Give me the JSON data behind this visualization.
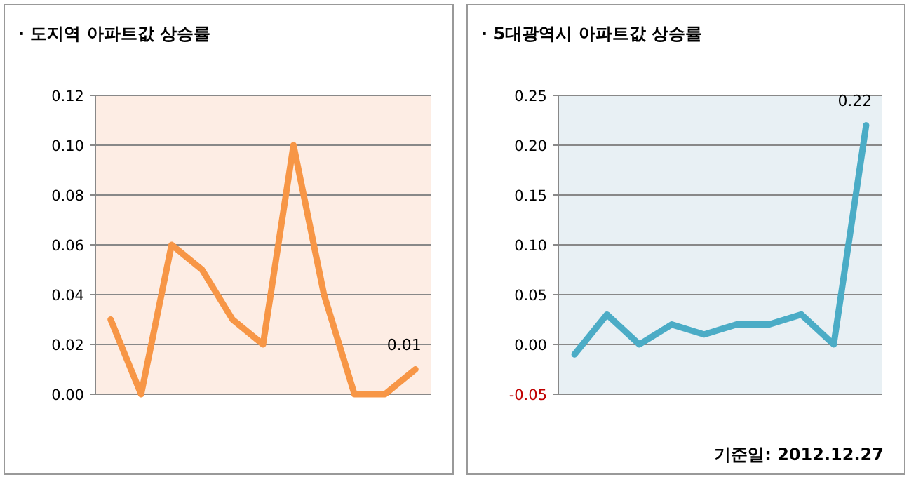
{
  "chart_data": [
    {
      "type": "line",
      "title": "· 도지역 아파트값 상승률",
      "categories": [
        null,
        null,
        null,
        null,
        null,
        null,
        null,
        null,
        null,
        null,
        null
      ],
      "series": [
        {
          "color": "#f79646",
          "values": [
            0.03,
            0,
            0.06,
            0.05,
            0.03,
            0.02,
            0.1,
            0.04,
            0,
            0,
            0.01
          ],
          "value_labels": [
            null,
            null,
            null,
            null,
            null,
            null,
            null,
            null,
            null,
            null,
            "0.01"
          ]
        }
      ],
      "ylim": [
        0,
        0.12
      ],
      "yticks": [
        {
          "value": 0,
          "label": "0.00"
        },
        {
          "value": 0.02,
          "label": "0.02"
        },
        {
          "value": 0.04,
          "label": "0.04"
        },
        {
          "value": 0.06,
          "label": "0.06"
        },
        {
          "value": 0.08,
          "label": "0.08"
        },
        {
          "value": 0.1,
          "label": "0.10"
        },
        {
          "value": 0.12,
          "label": "0.12"
        }
      ],
      "grid": "y",
      "marker": "none",
      "line_style": "solid",
      "tick_labels": "y"
    },
    {
      "type": "line",
      "title": "· 5대광역시 아파트값 상승률",
      "annotations": [
        "기준일: 2012.12.27"
      ],
      "categories": [
        null,
        null,
        null,
        null,
        null,
        null,
        null,
        null,
        null,
        null
      ],
      "series": [
        {
          "color": "#4bacc6",
          "values": [
            -0.01,
            0.03,
            0,
            0.02,
            0.01,
            0.02,
            0.02,
            0.03,
            0,
            0.22
          ],
          "value_labels": [
            null,
            null,
            null,
            null,
            null,
            null,
            null,
            null,
            null,
            "0.22"
          ]
        }
      ],
      "ylim": [
        -0.05,
        0.25
      ],
      "yticks": [
        {
          "value": -0.05,
          "label": "-0.05"
        },
        {
          "value": 0,
          "label": "0.00"
        },
        {
          "value": 0.05,
          "label": "0.05"
        },
        {
          "value": 0.1,
          "label": "0.10"
        },
        {
          "value": 0.15,
          "label": "0.15"
        },
        {
          "value": 0.2,
          "label": "0.20"
        },
        {
          "value": 0.25,
          "label": "0.25"
        }
      ],
      "grid": "y",
      "marker": "none",
      "line_style": "solid",
      "tick_labels": "y"
    }
  ]
}
